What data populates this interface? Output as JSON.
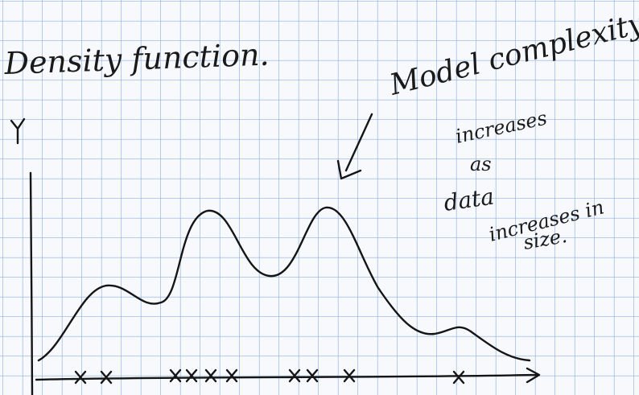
{
  "title": "Density function.",
  "annotation": {
    "heading": "Model complexity",
    "lines": [
      "increases",
      "as",
      "data",
      "increases in",
      "size."
    ]
  }
}
